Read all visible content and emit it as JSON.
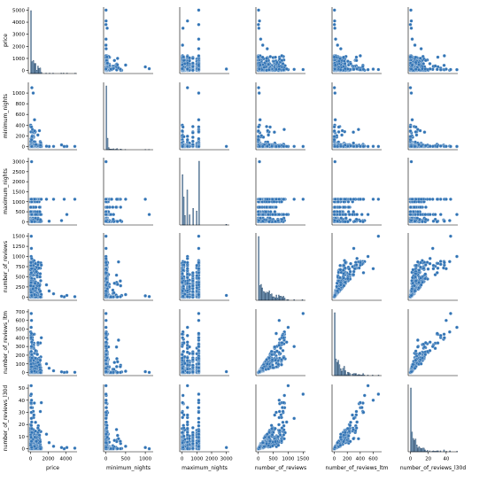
{
  "chart_data": {
    "type": "scatter",
    "variables": [
      "price",
      "minimum_nights",
      "maximum_nights",
      "number_of_reviews",
      "number_of_reviews_ltm",
      "number_of_reviews_l30d"
    ],
    "colors": {
      "points": "#3274b5",
      "point_edge": "#ffffff",
      "hist_fill": "#8fb3d3",
      "hist_edge": "#1f3d5c",
      "axis": "#000000"
    },
    "ticks": {
      "price": [
        "0",
        "2000",
        "4000"
      ],
      "minimum_nights": [
        "0",
        "500",
        "1000"
      ],
      "maximum_nights": [
        "0",
        "1000",
        "2000",
        "3000"
      ],
      "number_of_reviews": [
        "0",
        "500",
        "1000",
        "1500"
      ],
      "number_of_reviews_ltm": [
        "0",
        "200",
        "400",
        "600"
      ],
      "number_of_reviews_l30d": [
        "0",
        "20",
        "40"
      ]
    },
    "y_ticks": {
      "price": [
        "0",
        "1000",
        "2000",
        "3000",
        "4000",
        "5000"
      ],
      "minimum_nights": [
        "0",
        "200",
        "400",
        "600",
        "800",
        "1000"
      ],
      "maximum_nights": [
        "0",
        "500",
        "1000",
        "1500",
        "2000",
        "2500",
        "3000"
      ],
      "number_of_reviews": [
        "0",
        "250",
        "500",
        "750",
        "1000",
        "1250",
        "1500"
      ],
      "number_of_reviews_ltm": [
        "0",
        "100",
        "200",
        "300",
        "400",
        "500",
        "600",
        "700"
      ],
      "number_of_reviews_l30d": [
        "0",
        "10",
        "20",
        "30",
        "40",
        "50"
      ]
    }
  }
}
